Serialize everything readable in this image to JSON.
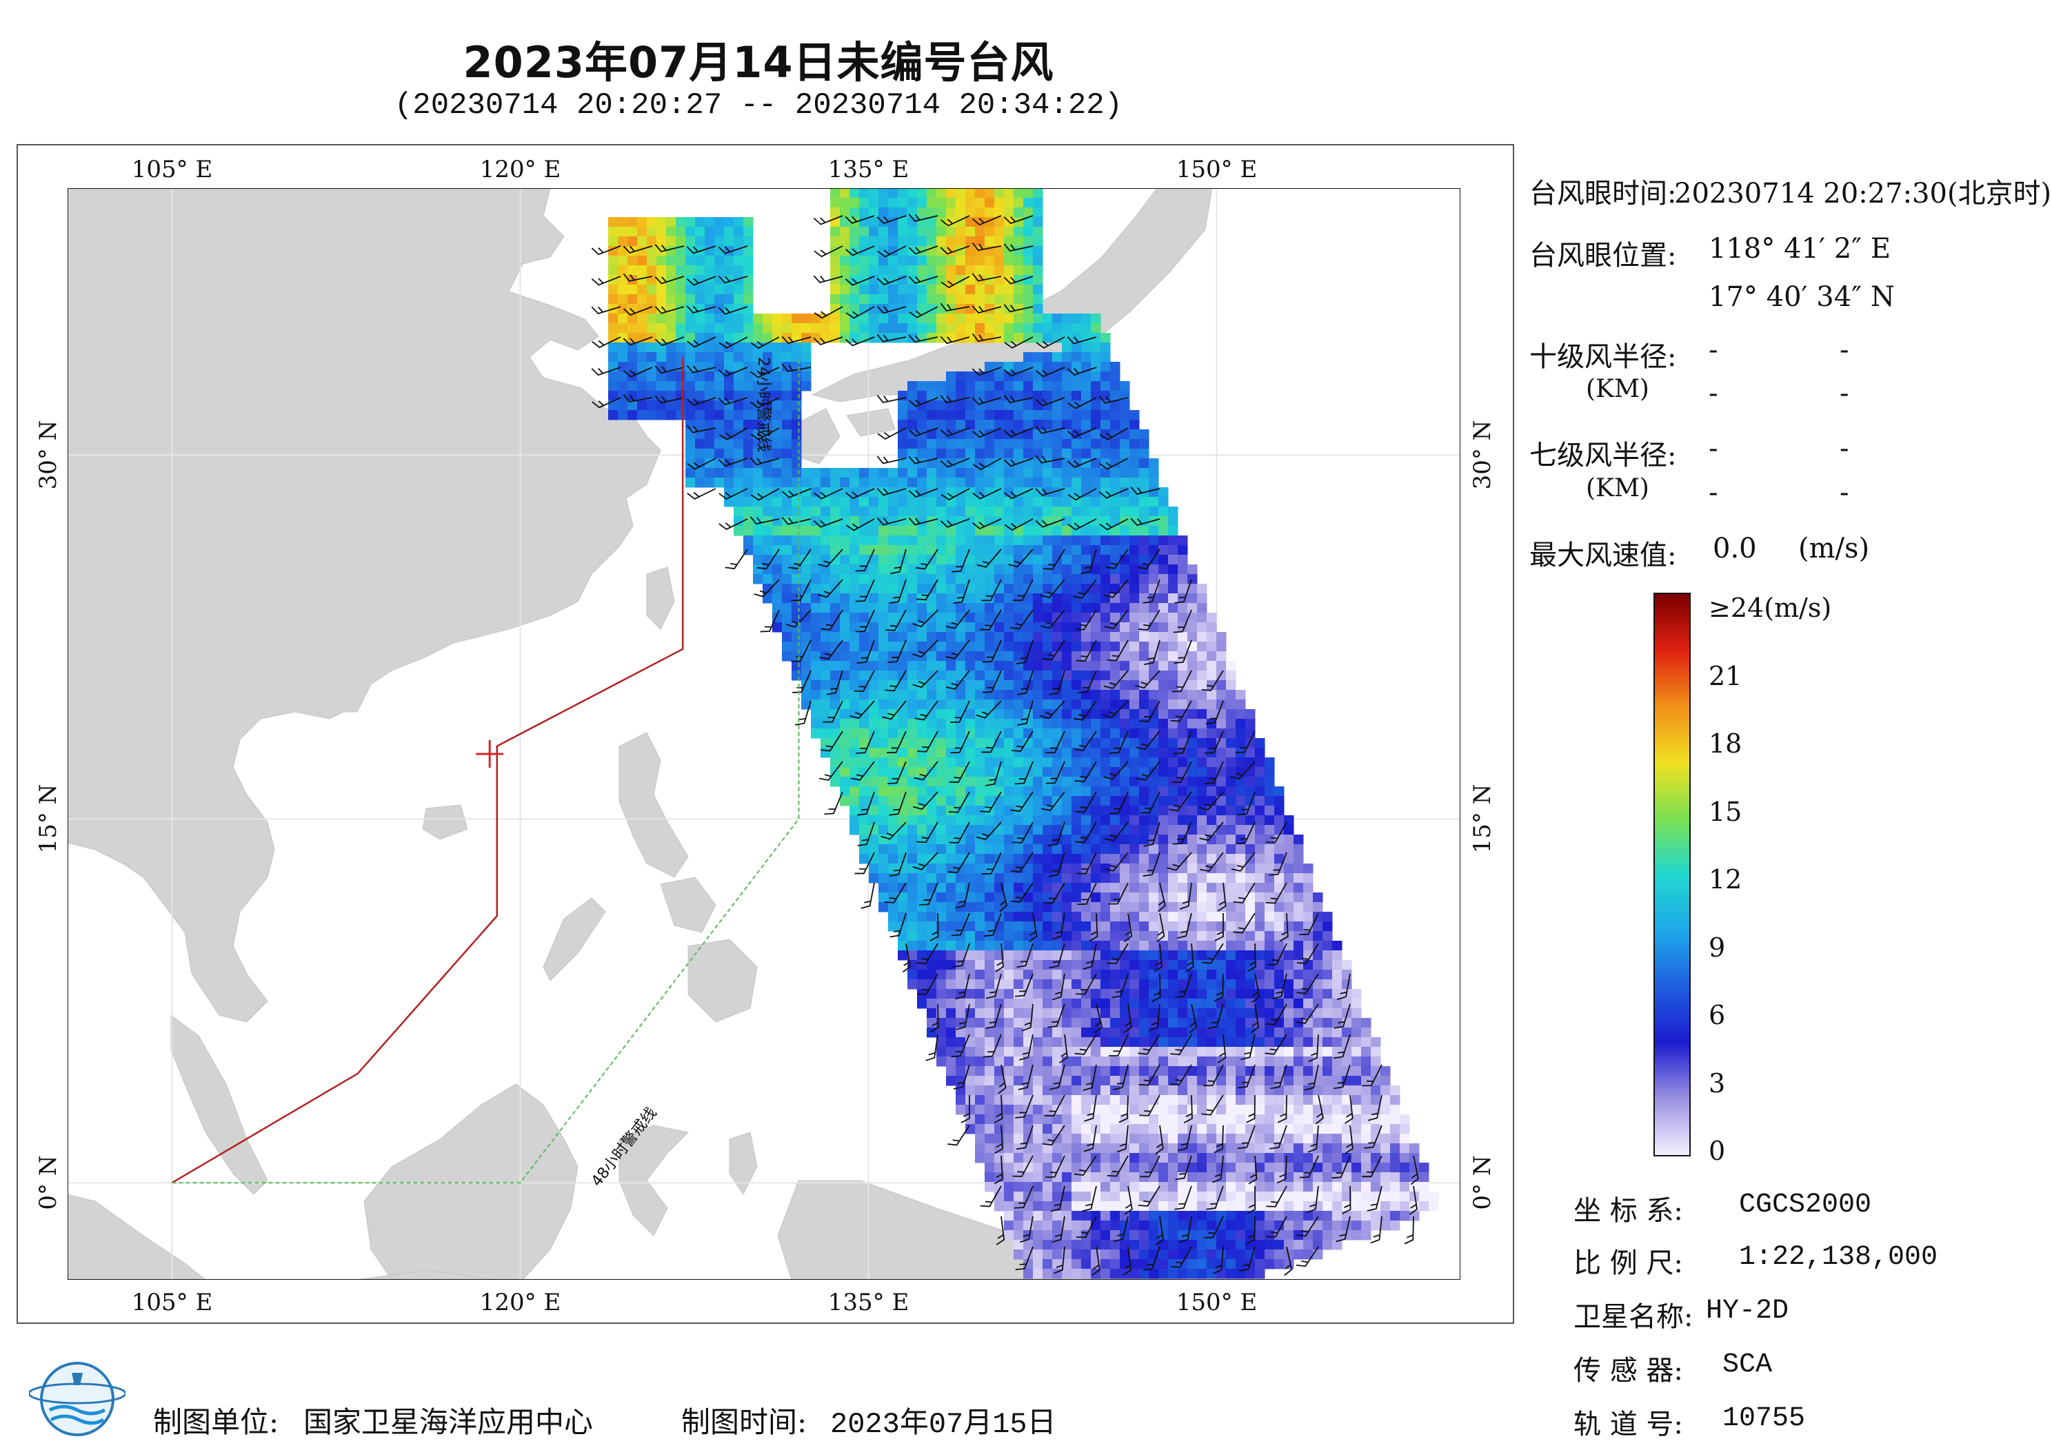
{
  "title": "2023年07月14日未编号台风",
  "subtitle": "(20230714 20:20:27 -- 20230714 20:34:22)",
  "map": {
    "lon_range": [
      100.5,
      160.5
    ],
    "lat_range": [
      -4.0,
      41.0
    ],
    "top_ticks": [
      "105° E",
      "120° E",
      "135° E",
      "150° E"
    ],
    "bottom_ticks": [
      "105° E",
      "120° E",
      "135° E",
      "150° E"
    ],
    "left_ticks": [
      "30° N",
      "15° N",
      "0° N"
    ],
    "right_ticks": [
      "30° N",
      "15° N",
      "0° N"
    ],
    "lon_values": [
      105,
      120,
      135,
      150
    ],
    "lat_values": [
      30,
      15,
      0
    ],
    "label_24h": "24小时警戒线",
    "label_48h": "48小时警戒线",
    "colors": {
      "land": "#d3d3d3",
      "ocean": "#ffffff",
      "line_24h": "#b22222",
      "line_48h": "#5cb85c",
      "barb": "#111111",
      "typhoon_mark": "#d62728"
    },
    "typhoon_eye": {
      "lon": 118.684,
      "lat": 17.676
    },
    "line_24h_points": [
      [
        105,
        0
      ],
      [
        113,
        4.5
      ],
      [
        119,
        11
      ],
      [
        119,
        18
      ],
      [
        127,
        22
      ],
      [
        127,
        34
      ]
    ],
    "line_48h_points": [
      [
        105,
        0
      ],
      [
        120,
        0
      ],
      [
        132,
        15
      ],
      [
        132,
        34
      ]
    ]
  },
  "info": {
    "eye_time_label": "台风眼时间:",
    "eye_time_value": "20230714 20:27:30(北京时)",
    "eye_pos_label": "台风眼位置:",
    "eye_lon": "118° 41′ 2″ E",
    "eye_lat": "17° 40′ 34″ N",
    "r10_label": "十级风半径:",
    "r10_unit": "(KM)",
    "r7_label": "七级风半径:",
    "r7_unit": "(KM)",
    "dash": "-",
    "max_wind_label": "最大风速值:",
    "max_wind_value": "0.0",
    "max_wind_unit": "(m/s)"
  },
  "colorbar": {
    "labels": [
      "≥24(m/s)",
      "21",
      "18",
      "15",
      "12",
      "9",
      "6",
      "3",
      "0"
    ],
    "values": [
      24,
      21,
      18,
      15,
      12,
      9,
      6,
      3,
      0
    ],
    "stops": [
      "#f5f0ff",
      "#9a92e0",
      "#1c1cd0",
      "#1f5fe0",
      "#1ea8e8",
      "#20d8d0",
      "#7ce050",
      "#f0e020",
      "#f09018",
      "#e02010",
      "#7a0000"
    ]
  },
  "meta": {
    "crs_label": "坐 标 系:",
    "crs_value": "CGCS2000",
    "scale_label": "比 例 尺:",
    "scale_value": "1:22,138,000",
    "sat_label": "卫星名称:",
    "sat_value": "HY-2D",
    "sensor_label": "传 感 器:",
    "sensor_value": "SCA",
    "orbit_label": "轨 道 号:",
    "orbit_value": "10755"
  },
  "footer": {
    "org_label": "制图单位:",
    "org_value": "国家卫星海洋应用中心",
    "date_label": "制图时间:",
    "date_value": "2023年07月15日"
  }
}
